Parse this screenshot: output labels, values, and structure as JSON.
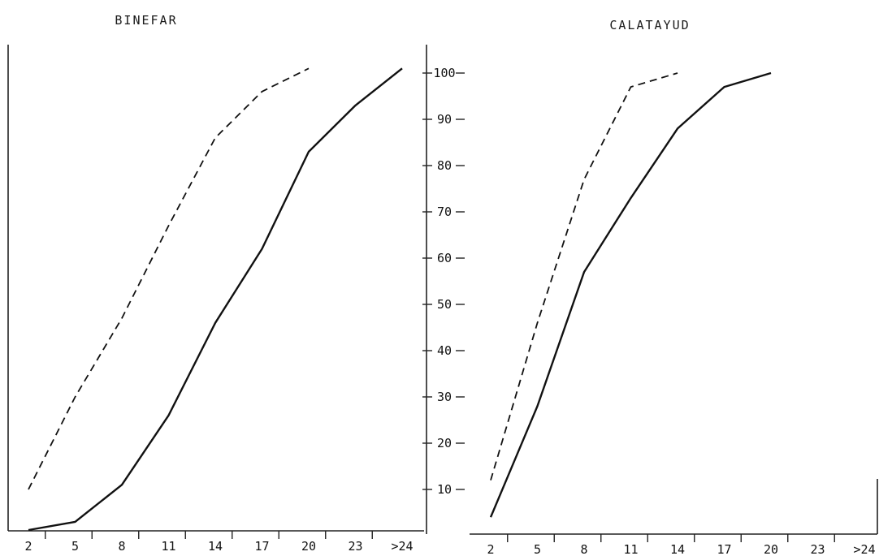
{
  "chart_data": [
    {
      "type": "line",
      "title": "BINEFAR",
      "categories": [
        "2",
        "5",
        "8",
        "11",
        "14",
        "17",
        "20",
        "23",
        ">24"
      ],
      "xlabel": "",
      "ylabel": "",
      "ylim": [
        0,
        105
      ],
      "grid": false,
      "series": [
        {
          "style": "solid",
          "values": [
            0,
            3,
            11,
            26,
            46,
            62,
            83,
            93,
            101
          ]
        },
        {
          "style": "dashed",
          "values": [
            10,
            30,
            47,
            67,
            86,
            96,
            101,
            null,
            null
          ]
        }
      ]
    },
    {
      "type": "line",
      "title": "CALATAYUD",
      "categories": [
        "2",
        "5",
        "8",
        "11",
        "14",
        "17",
        "20",
        "23",
        ">24"
      ],
      "xlabel": "",
      "ylabel": "",
      "ylim": [
        0,
        105
      ],
      "yticks": [
        "10",
        "20",
        "30",
        "40",
        "50",
        "60",
        "70",
        "80",
        "90",
        "100"
      ],
      "grid": false,
      "series": [
        {
          "style": "solid",
          "x": [
            2,
            5,
            8,
            11,
            14,
            17,
            20
          ],
          "values": [
            4,
            28,
            57,
            73,
            88,
            97,
            100
          ]
        },
        {
          "style": "dashed",
          "x": [
            2,
            5,
            8,
            11,
            14
          ],
          "values": [
            12,
            46,
            77,
            97,
            100
          ]
        }
      ]
    }
  ]
}
